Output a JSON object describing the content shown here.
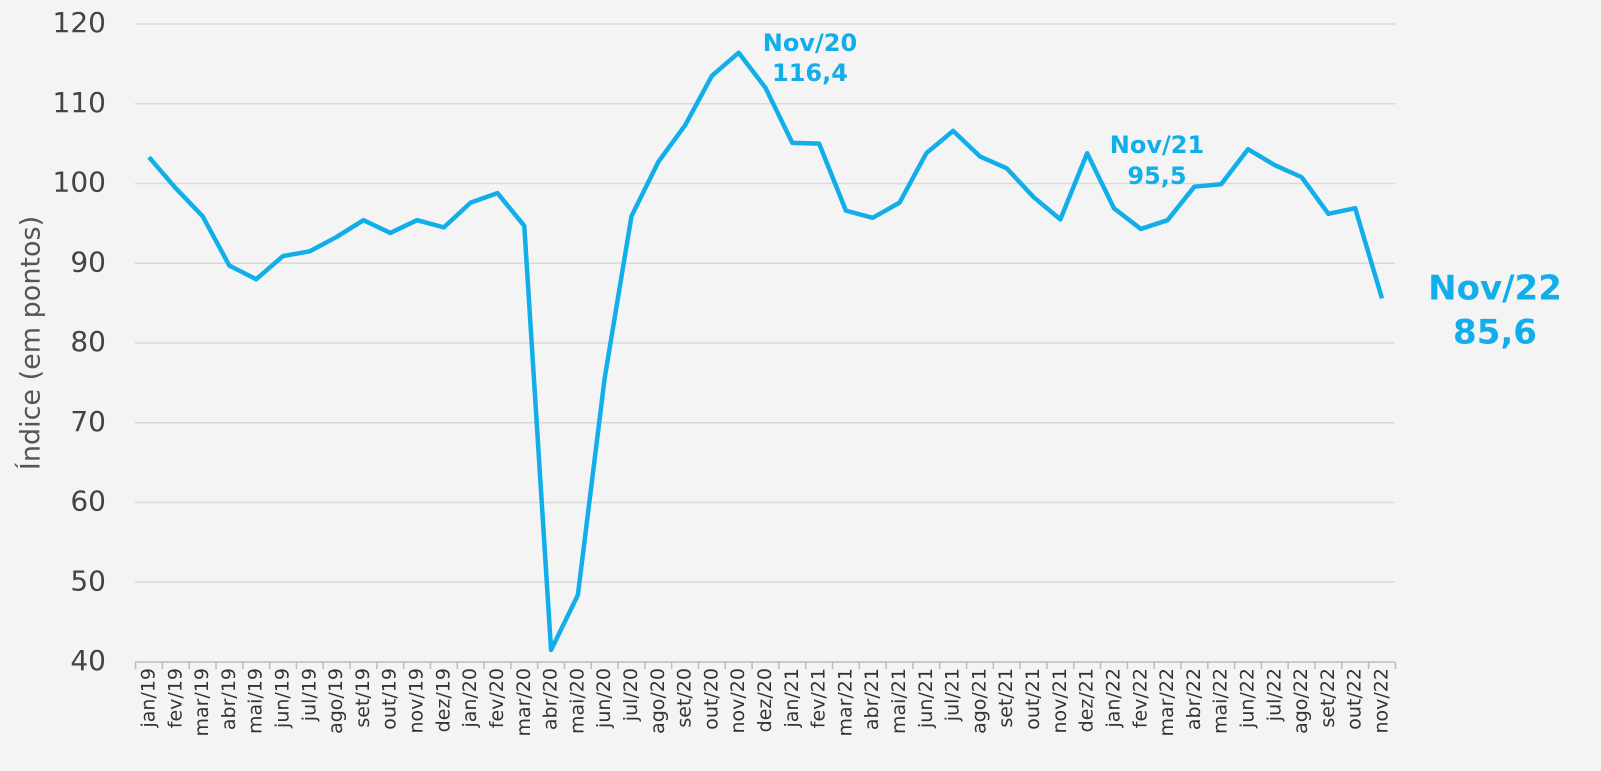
{
  "chart_data": {
    "type": "line",
    "y_label": "Índice (em pontos)",
    "categories": [
      "jan/19",
      "fev/19",
      "mar/19",
      "abr/19",
      "mai/19",
      "jun/19",
      "jul/19",
      "ago/19",
      "set/19",
      "out/19",
      "nov/19",
      "dez/19",
      "jan/20",
      "fev/20",
      "mar/20",
      "abr/20",
      "mai/20",
      "jun/20",
      "jul/20",
      "ago/20",
      "set/20",
      "out/20",
      "nov/20",
      "dez/20",
      "jan/21",
      "fev/21",
      "mar/21",
      "abr/21",
      "mai/21",
      "jun/21",
      "jul/21",
      "ago/21",
      "set/21",
      "out/21",
      "nov/21",
      "dez/21",
      "jan/22",
      "fev/22",
      "mar/22",
      "abr/22",
      "mai/22",
      "jun/22",
      "jul/22",
      "ago/22",
      "set/22",
      "out/22",
      "nov/22"
    ],
    "series": [
      {
        "name": "Índice",
        "color": "#12aeea",
        "values": [
          103.3,
          99.4,
          95.9,
          89.7,
          88.0,
          90.9,
          91.5,
          93.3,
          95.4,
          93.8,
          95.4,
          94.5,
          97.6,
          98.8,
          94.7,
          41.5,
          48.4,
          75.6,
          95.9,
          102.7,
          107.3,
          113.5,
          116.4,
          112.0,
          105.1,
          105.0,
          96.6,
          95.7,
          97.6,
          103.8,
          106.6,
          103.4,
          101.9,
          98.3,
          95.5,
          103.8,
          96.9,
          94.3,
          95.4,
          99.6,
          99.9,
          104.3,
          102.3,
          100.8,
          96.2,
          96.9,
          85.6
        ]
      }
    ],
    "ylim": [
      40,
      120
    ],
    "yticks": [
      40,
      50,
      60,
      70,
      80,
      90,
      100,
      110,
      120
    ],
    "grid": true,
    "annotations": [
      {
        "text": [
          "Nov/20",
          "116,4"
        ]
      },
      {
        "text": [
          "Nov/21",
          "95,5"
        ]
      },
      {
        "text": [
          "Nov/22",
          "85,6"
        ]
      }
    ]
  }
}
